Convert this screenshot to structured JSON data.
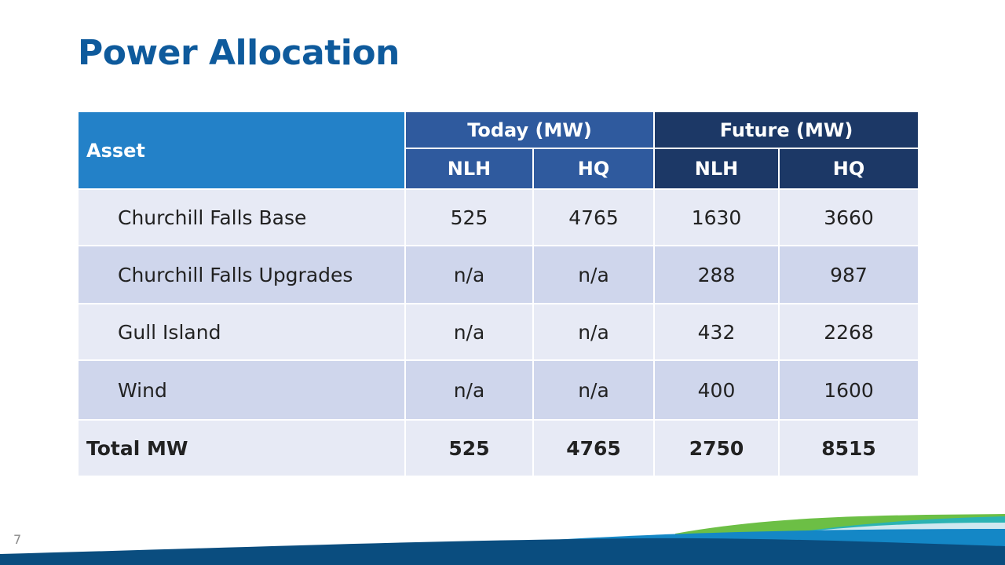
{
  "slide": {
    "title": "Power Allocation",
    "page_number": "7"
  },
  "table": {
    "headers": {
      "asset": "Asset",
      "today": "Today (MW)",
      "future": "Future (MW)",
      "today_nlh": "NLH",
      "today_hq": "HQ",
      "future_nlh": "NLH",
      "future_hq": "HQ"
    },
    "rows": [
      {
        "asset": "Churchill Falls Base",
        "today_nlh": "525",
        "today_hq": "4765",
        "future_nlh": "1630",
        "future_hq": "3660"
      },
      {
        "asset": "Churchill Falls Upgrades",
        "today_nlh": "n/a",
        "today_hq": "n/a",
        "future_nlh": "288",
        "future_hq": "987"
      },
      {
        "asset": "Gull Island",
        "today_nlh": "n/a",
        "today_hq": "n/a",
        "future_nlh": "432",
        "future_hq": "2268"
      },
      {
        "asset": "Wind",
        "today_nlh": "n/a",
        "today_hq": "n/a",
        "future_nlh": "400",
        "future_hq": "1600"
      }
    ],
    "total": {
      "asset": "Total MW",
      "today_nlh": "525",
      "today_hq": "4765",
      "future_nlh": "2750",
      "future_hq": "8515"
    }
  },
  "colors": {
    "title": "#0e5a9c",
    "asset_header": "#2381c8",
    "today_header": "#2f5a9e",
    "future_header": "#1c3866",
    "row_light": "#e7eaf5",
    "row_dark": "#cfd6ec"
  }
}
